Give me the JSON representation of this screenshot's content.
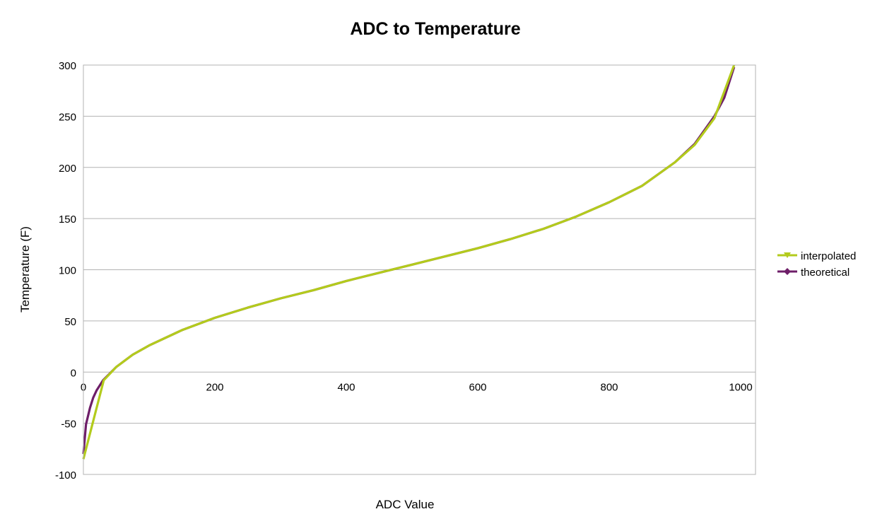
{
  "chart_data": {
    "type": "line",
    "title": "ADC to Temperature",
    "xlabel": "ADC Value",
    "ylabel": "Temperature (F)",
    "xlim": [
      0,
      1023
    ],
    "ylim": [
      -100,
      300
    ],
    "xticks": [
      0,
      200,
      400,
      600,
      800,
      1000
    ],
    "yticks": [
      -100,
      -50,
      0,
      50,
      100,
      150,
      200,
      250,
      300
    ],
    "grid": "horizontal",
    "legend_position": "right",
    "series": [
      {
        "name": "interpolated",
        "color": "#b3cb1c",
        "marker": "triangle-down",
        "points": [
          [
            0,
            -85
          ],
          [
            31,
            -8
          ],
          [
            50,
            5
          ],
          [
            75,
            17
          ],
          [
            100,
            26
          ],
          [
            150,
            41
          ],
          [
            200,
            53
          ],
          [
            250,
            63
          ],
          [
            300,
            72
          ],
          [
            350,
            80
          ],
          [
            400,
            89
          ],
          [
            450,
            97
          ],
          [
            500,
            105
          ],
          [
            550,
            113
          ],
          [
            600,
            121
          ],
          [
            650,
            130
          ],
          [
            700,
            140
          ],
          [
            750,
            152
          ],
          [
            800,
            166
          ],
          [
            850,
            182
          ],
          [
            900,
            205
          ],
          [
            930,
            222
          ],
          [
            960,
            248
          ],
          [
            990,
            300
          ]
        ]
      },
      {
        "name": "theoretical",
        "color": "#6e1e68",
        "marker": "diamond",
        "points": [
          [
            0,
            -80
          ],
          [
            4,
            -51
          ],
          [
            10,
            -35
          ],
          [
            15,
            -25
          ],
          [
            20,
            -18
          ],
          [
            30,
            -8
          ],
          [
            50,
            5
          ],
          [
            75,
            17
          ],
          [
            100,
            26
          ],
          [
            150,
            41
          ],
          [
            200,
            53
          ],
          [
            250,
            63
          ],
          [
            300,
            72
          ],
          [
            350,
            80
          ],
          [
            400,
            89
          ],
          [
            450,
            97
          ],
          [
            500,
            105
          ],
          [
            550,
            113
          ],
          [
            600,
            121
          ],
          [
            650,
            130
          ],
          [
            700,
            140
          ],
          [
            750,
            152
          ],
          [
            800,
            166
          ],
          [
            850,
            182
          ],
          [
            900,
            205
          ],
          [
            930,
            223
          ],
          [
            960,
            250
          ],
          [
            975,
            268
          ],
          [
            990,
            298
          ]
        ]
      }
    ]
  }
}
